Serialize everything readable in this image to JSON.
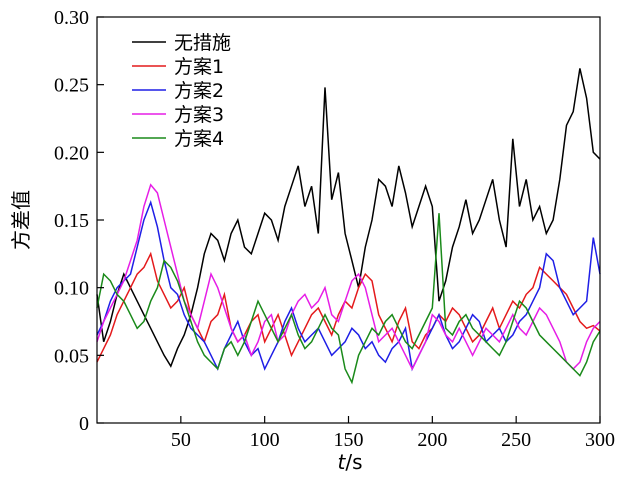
{
  "chart_data": {
    "type": "line",
    "xlabel_italic": "t",
    "xlabel_unit": "/s",
    "ylabel": "方差值",
    "xlim": [
      0,
      300
    ],
    "ylim": [
      0,
      0.3
    ],
    "xticks": [
      50,
      100,
      150,
      200,
      250,
      300
    ],
    "yticks": [
      0,
      0.05,
      0.1,
      0.15,
      0.2,
      0.25,
      0.3
    ],
    "ytick_labels": [
      "0",
      "0.05",
      "0.10",
      "0.15",
      "0.20",
      "0.25",
      "0.30"
    ],
    "grid": false,
    "legend_position": "top-left",
    "series": [
      {
        "name": "无措施",
        "color": "#000000",
        "x": [
          0,
          4,
          8,
          12,
          16,
          20,
          24,
          28,
          32,
          36,
          40,
          44,
          48,
          52,
          56,
          60,
          64,
          68,
          72,
          76,
          80,
          84,
          88,
          92,
          96,
          100,
          104,
          108,
          112,
          116,
          120,
          124,
          128,
          132,
          136,
          140,
          144,
          148,
          152,
          156,
          160,
          164,
          168,
          172,
          176,
          180,
          184,
          188,
          192,
          196,
          200,
          204,
          208,
          212,
          216,
          220,
          224,
          228,
          232,
          236,
          240,
          244,
          248,
          252,
          256,
          260,
          264,
          268,
          272,
          276,
          280,
          284,
          288,
          292,
          296,
          300
        ],
        "values": [
          0.095,
          0.06,
          0.075,
          0.095,
          0.11,
          0.1,
          0.09,
          0.08,
          0.07,
          0.06,
          0.05,
          0.042,
          0.055,
          0.065,
          0.08,
          0.1,
          0.125,
          0.14,
          0.135,
          0.12,
          0.14,
          0.15,
          0.13,
          0.125,
          0.14,
          0.155,
          0.15,
          0.135,
          0.16,
          0.175,
          0.19,
          0.16,
          0.175,
          0.14,
          0.248,
          0.165,
          0.185,
          0.14,
          0.12,
          0.1,
          0.13,
          0.15,
          0.18,
          0.175,
          0.16,
          0.19,
          0.17,
          0.145,
          0.16,
          0.175,
          0.16,
          0.09,
          0.105,
          0.13,
          0.145,
          0.165,
          0.14,
          0.15,
          0.165,
          0.18,
          0.15,
          0.13,
          0.21,
          0.16,
          0.18,
          0.15,
          0.16,
          0.14,
          0.15,
          0.18,
          0.22,
          0.23,
          0.262,
          0.24,
          0.2,
          0.195
        ]
      },
      {
        "name": "方案1",
        "color": "#e41a1c",
        "x": [
          0,
          4,
          8,
          12,
          16,
          20,
          24,
          28,
          32,
          36,
          40,
          44,
          48,
          52,
          56,
          60,
          64,
          68,
          72,
          76,
          80,
          84,
          88,
          92,
          96,
          100,
          104,
          108,
          112,
          116,
          120,
          124,
          128,
          132,
          136,
          140,
          144,
          148,
          152,
          156,
          160,
          164,
          168,
          172,
          176,
          180,
          184,
          188,
          192,
          196,
          200,
          204,
          208,
          212,
          216,
          220,
          224,
          228,
          232,
          236,
          240,
          244,
          248,
          252,
          256,
          260,
          264,
          268,
          272,
          276,
          280,
          284,
          288,
          292,
          296,
          300
        ],
        "values": [
          0.045,
          0.055,
          0.065,
          0.08,
          0.09,
          0.1,
          0.11,
          0.115,
          0.125,
          0.105,
          0.095,
          0.085,
          0.09,
          0.1,
          0.08,
          0.07,
          0.06,
          0.075,
          0.08,
          0.095,
          0.07,
          0.06,
          0.065,
          0.075,
          0.08,
          0.06,
          0.07,
          0.08,
          0.065,
          0.05,
          0.06,
          0.07,
          0.08,
          0.085,
          0.075,
          0.065,
          0.08,
          0.09,
          0.085,
          0.1,
          0.11,
          0.105,
          0.08,
          0.07,
          0.06,
          0.075,
          0.085,
          0.06,
          0.055,
          0.065,
          0.07,
          0.08,
          0.075,
          0.085,
          0.08,
          0.07,
          0.06,
          0.065,
          0.075,
          0.085,
          0.07,
          0.08,
          0.09,
          0.085,
          0.095,
          0.1,
          0.115,
          0.11,
          0.105,
          0.1,
          0.095,
          0.085,
          0.075,
          0.07,
          0.072,
          0.068
        ]
      },
      {
        "name": "方案2",
        "color": "#1f1fe6",
        "x": [
          0,
          4,
          8,
          12,
          16,
          20,
          24,
          28,
          32,
          36,
          40,
          44,
          48,
          52,
          56,
          60,
          64,
          68,
          72,
          76,
          80,
          84,
          88,
          92,
          96,
          100,
          104,
          108,
          112,
          116,
          120,
          124,
          128,
          132,
          136,
          140,
          144,
          148,
          152,
          156,
          160,
          164,
          168,
          172,
          176,
          180,
          184,
          188,
          192,
          196,
          200,
          204,
          208,
          212,
          216,
          220,
          224,
          228,
          232,
          236,
          240,
          244,
          248,
          252,
          256,
          260,
          264,
          268,
          272,
          276,
          280,
          284,
          288,
          292,
          296,
          300
        ],
        "values": [
          0.065,
          0.075,
          0.09,
          0.1,
          0.105,
          0.11,
          0.13,
          0.15,
          0.163,
          0.145,
          0.12,
          0.1,
          0.095,
          0.08,
          0.07,
          0.065,
          0.06,
          0.05,
          0.04,
          0.055,
          0.065,
          0.075,
          0.06,
          0.05,
          0.055,
          0.04,
          0.05,
          0.06,
          0.075,
          0.085,
          0.07,
          0.06,
          0.065,
          0.07,
          0.06,
          0.05,
          0.055,
          0.06,
          0.07,
          0.065,
          0.055,
          0.06,
          0.05,
          0.045,
          0.055,
          0.06,
          0.07,
          0.04,
          0.05,
          0.06,
          0.07,
          0.08,
          0.065,
          0.055,
          0.06,
          0.07,
          0.08,
          0.075,
          0.06,
          0.065,
          0.07,
          0.06,
          0.065,
          0.075,
          0.08,
          0.09,
          0.1,
          0.125,
          0.12,
          0.1,
          0.09,
          0.08,
          0.085,
          0.09,
          0.137,
          0.11
        ]
      },
      {
        "name": "方案3",
        "color": "#e61ee6",
        "x": [
          0,
          4,
          8,
          12,
          16,
          20,
          24,
          28,
          32,
          36,
          40,
          44,
          48,
          52,
          56,
          60,
          64,
          68,
          72,
          76,
          80,
          84,
          88,
          92,
          96,
          100,
          104,
          108,
          112,
          116,
          120,
          124,
          128,
          132,
          136,
          140,
          144,
          148,
          152,
          156,
          160,
          164,
          168,
          172,
          176,
          180,
          184,
          188,
          192,
          196,
          200,
          204,
          208,
          212,
          216,
          220,
          224,
          228,
          232,
          236,
          240,
          244,
          248,
          252,
          256,
          260,
          264,
          268,
          272,
          276,
          280,
          284,
          288,
          292,
          296,
          300
        ],
        "values": [
          0.06,
          0.075,
          0.085,
          0.095,
          0.105,
          0.12,
          0.135,
          0.16,
          0.176,
          0.17,
          0.15,
          0.13,
          0.11,
          0.09,
          0.08,
          0.07,
          0.09,
          0.11,
          0.1,
          0.085,
          0.07,
          0.06,
          0.065,
          0.05,
          0.06,
          0.075,
          0.08,
          0.06,
          0.065,
          0.08,
          0.09,
          0.095,
          0.085,
          0.09,
          0.1,
          0.08,
          0.075,
          0.09,
          0.105,
          0.11,
          0.1,
          0.08,
          0.06,
          0.065,
          0.07,
          0.06,
          0.05,
          0.04,
          0.05,
          0.06,
          0.08,
          0.075,
          0.065,
          0.06,
          0.07,
          0.06,
          0.05,
          0.06,
          0.07,
          0.065,
          0.06,
          0.07,
          0.08,
          0.07,
          0.065,
          0.075,
          0.085,
          0.08,
          0.07,
          0.06,
          0.045,
          0.04,
          0.045,
          0.06,
          0.07,
          0.075
        ]
      },
      {
        "name": "方案4",
        "color": "#1a8a1a",
        "x": [
          0,
          4,
          8,
          12,
          16,
          20,
          24,
          28,
          32,
          36,
          40,
          44,
          48,
          52,
          56,
          60,
          64,
          68,
          72,
          76,
          80,
          84,
          88,
          92,
          96,
          100,
          104,
          108,
          112,
          116,
          120,
          124,
          128,
          132,
          136,
          140,
          144,
          148,
          152,
          156,
          160,
          164,
          168,
          172,
          176,
          180,
          184,
          188,
          192,
          196,
          200,
          204,
          208,
          212,
          216,
          220,
          224,
          228,
          232,
          236,
          240,
          244,
          248,
          252,
          256,
          260,
          264,
          268,
          272,
          276,
          280,
          284,
          288,
          292,
          296,
          300
        ],
        "values": [
          0.085,
          0.11,
          0.105,
          0.095,
          0.09,
          0.08,
          0.07,
          0.075,
          0.09,
          0.1,
          0.12,
          0.115,
          0.105,
          0.09,
          0.075,
          0.06,
          0.05,
          0.045,
          0.04,
          0.055,
          0.06,
          0.05,
          0.06,
          0.075,
          0.09,
          0.08,
          0.07,
          0.06,
          0.07,
          0.08,
          0.065,
          0.055,
          0.06,
          0.07,
          0.08,
          0.07,
          0.065,
          0.04,
          0.03,
          0.05,
          0.06,
          0.07,
          0.065,
          0.075,
          0.08,
          0.07,
          0.06,
          0.055,
          0.065,
          0.075,
          0.085,
          0.155,
          0.07,
          0.065,
          0.075,
          0.08,
          0.07,
          0.065,
          0.06,
          0.055,
          0.05,
          0.06,
          0.075,
          0.09,
          0.085,
          0.075,
          0.065,
          0.06,
          0.055,
          0.05,
          0.045,
          0.04,
          0.035,
          0.045,
          0.06,
          0.068
        ]
      }
    ]
  }
}
